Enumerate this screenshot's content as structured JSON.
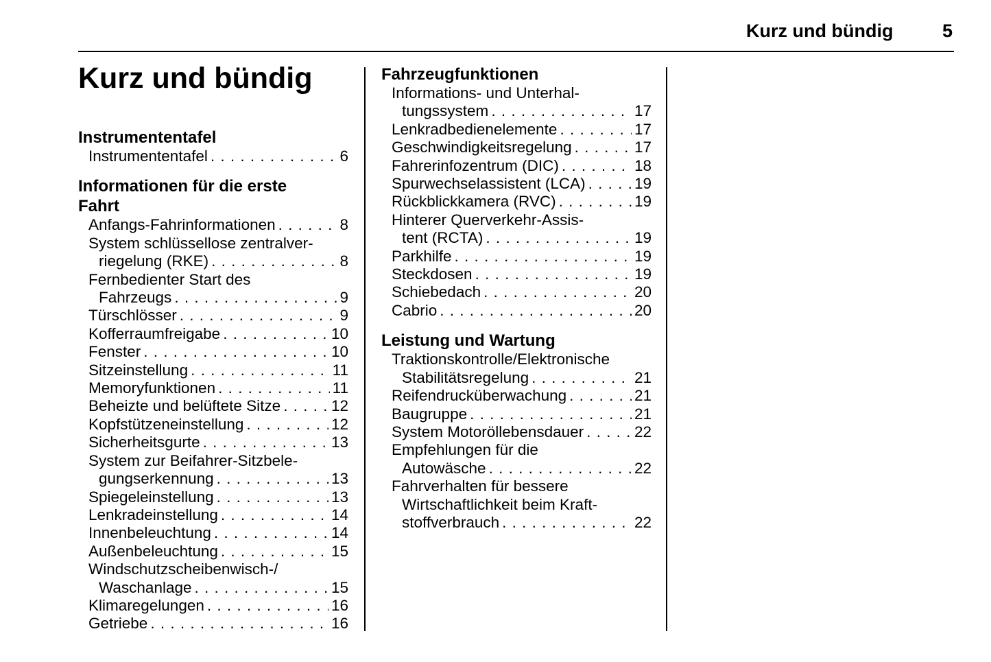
{
  "header": {
    "running_title": "Kurz und bündig",
    "page_number": "5"
  },
  "title": "Kurz und bündig",
  "columns": [
    {
      "sections": [
        {
          "heading": [
            "Instrumententafel"
          ],
          "entries": [
            {
              "lines": [
                "Instrumententafel"
              ],
              "page": "6"
            }
          ]
        },
        {
          "heading": [
            "Informationen für die erste",
            "Fahrt"
          ],
          "entries": [
            {
              "lines": [
                "Anfangs-Fahrinformationen"
              ],
              "page": "8"
            },
            {
              "lines": [
                "System schlüssellose zentralver-",
                "riegelung (RKE)"
              ],
              "page": "8"
            },
            {
              "lines": [
                "Fernbedienter Start des",
                "Fahrzeugs"
              ],
              "page": "9"
            },
            {
              "lines": [
                "Türschlösser"
              ],
              "page": "9"
            },
            {
              "lines": [
                "Kofferraumfreigabe"
              ],
              "page": "10"
            },
            {
              "lines": [
                "Fenster"
              ],
              "page": "10"
            },
            {
              "lines": [
                "Sitzeinstellung"
              ],
              "page": "11"
            },
            {
              "lines": [
                "Memoryfunktionen"
              ],
              "page": "11"
            },
            {
              "lines": [
                "Beheizte und belüftete Sitze"
              ],
              "page": "12"
            },
            {
              "lines": [
                "Kopfstützeneinstellung"
              ],
              "page": "12"
            },
            {
              "lines": [
                "Sicherheitsgurte"
              ],
              "page": "13"
            },
            {
              "lines": [
                "System zur Beifahrer-Sitzbele-",
                "gungserkennung"
              ],
              "page": "13"
            },
            {
              "lines": [
                "Spiegeleinstellung"
              ],
              "page": "13"
            },
            {
              "lines": [
                "Lenkradeinstellung"
              ],
              "page": "14"
            },
            {
              "lines": [
                "Innenbeleuchtung"
              ],
              "page": "14"
            },
            {
              "lines": [
                "Außenbeleuchtung"
              ],
              "page": "15"
            },
            {
              "lines": [
                "Windschutzscheibenwisch-/",
                "Waschanlage"
              ],
              "page": "15"
            },
            {
              "lines": [
                "Klimaregelungen"
              ],
              "page": "16"
            },
            {
              "lines": [
                "Getriebe"
              ],
              "page": "16"
            }
          ]
        }
      ]
    },
    {
      "sections": [
        {
          "heading": [
            "Fahrzeugfunktionen"
          ],
          "entries": [
            {
              "lines": [
                "Informations- und Unterhal-",
                "tungssystem"
              ],
              "page": "17"
            },
            {
              "lines": [
                "Lenkradbedienelemente"
              ],
              "page": "17"
            },
            {
              "lines": [
                "Geschwindigkeitsregelung"
              ],
              "page": "17"
            },
            {
              "lines": [
                "Fahrerinfozentrum (DIC)"
              ],
              "page": "18"
            },
            {
              "lines": [
                "Spurwechselassistent (LCA)"
              ],
              "page": "19"
            },
            {
              "lines": [
                "Rückblickkamera (RVC)"
              ],
              "page": "19"
            },
            {
              "lines": [
                "Hinterer Querverkehr-Assis-",
                "tent (RCTA)"
              ],
              "page": "19"
            },
            {
              "lines": [
                "Parkhilfe"
              ],
              "page": "19"
            },
            {
              "lines": [
                "Steckdosen"
              ],
              "page": "19"
            },
            {
              "lines": [
                "Schiebedach"
              ],
              "page": "20"
            },
            {
              "lines": [
                "Cabrio"
              ],
              "page": "20"
            }
          ]
        },
        {
          "heading": [
            "Leistung und Wartung"
          ],
          "entries": [
            {
              "lines": [
                "Traktionskontrolle/Elektronische",
                "Stabilitätsregelung"
              ],
              "page": "21"
            },
            {
              "lines": [
                "Reifendrucküberwachung"
              ],
              "page": "21"
            },
            {
              "lines": [
                "Baugruppe"
              ],
              "page": "21"
            },
            {
              "lines": [
                "System Motoröllebensdauer"
              ],
              "page": "22"
            },
            {
              "lines": [
                "Empfehlungen für die",
                "Autowäsche"
              ],
              "page": "22"
            },
            {
              "lines": [
                "Fahrverhalten für bessere",
                "Wirtschaftlichkeit beim Kraft-",
                "stoffverbrauch"
              ],
              "page": "22"
            }
          ]
        }
      ]
    }
  ]
}
